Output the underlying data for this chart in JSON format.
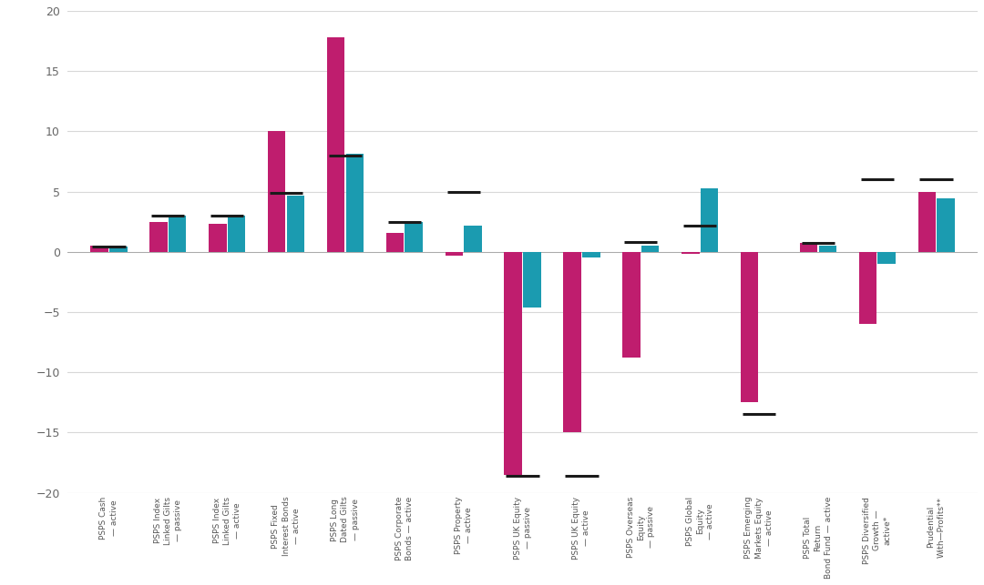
{
  "categories": [
    "PSPS Cash\n— active",
    "PSPS Index\nLinked Gilts\n— passive",
    "PSPS Index\nLinked Gilts\n— active",
    "PSPS Fixed\nInterest Bonds\n— active",
    "PSPS Long\nDated Gilts\n— passive",
    "PSPS Corporate\nBonds — active",
    "PSPS Property\n— active",
    "PSPS UK Equity\n— passive",
    "PSPS UK Equity\n— active",
    "PSPS Overseas\nEquity\n— passive",
    "PSPS Global\nEquity\n— active",
    "PSPS Emerging\nMarkets Equity\n— active",
    "PSPS Total\nReturn\nBond Fund — active",
    "PSPS Diversified\nGrowth —\nactive*",
    "Prudential\nWith—Profits**"
  ],
  "bar1_values": [
    0.5,
    2.5,
    2.3,
    10.0,
    17.8,
    1.6,
    -0.3,
    -18.5,
    -15.0,
    -8.8,
    -0.2,
    -12.5,
    0.7,
    -6.0,
    5.0
  ],
  "bar2_values": [
    0.4,
    3.0,
    3.0,
    4.7,
    8.1,
    2.5,
    2.2,
    -4.6,
    -0.5,
    0.5,
    5.3,
    null,
    0.5,
    -1.0,
    4.4
  ],
  "benchmark_values": [
    0.4,
    3.0,
    3.0,
    4.9,
    8.0,
    2.5,
    5.0,
    -18.6,
    -18.6,
    0.8,
    2.2,
    -13.5,
    0.7,
    6.0,
    6.0
  ],
  "bar1_color": "#BF1D6E",
  "bar2_color": "#1B9BB0",
  "benchmark_color": "#1a1a1a",
  "ylim": [
    -20,
    20
  ],
  "yticks": [
    -20,
    -15,
    -10,
    -5,
    0,
    5,
    10,
    15,
    20
  ],
  "background_color": "#ffffff",
  "grid_color": "#d8d8d8",
  "figure_width": 10.8,
  "figure_height": 6.43
}
